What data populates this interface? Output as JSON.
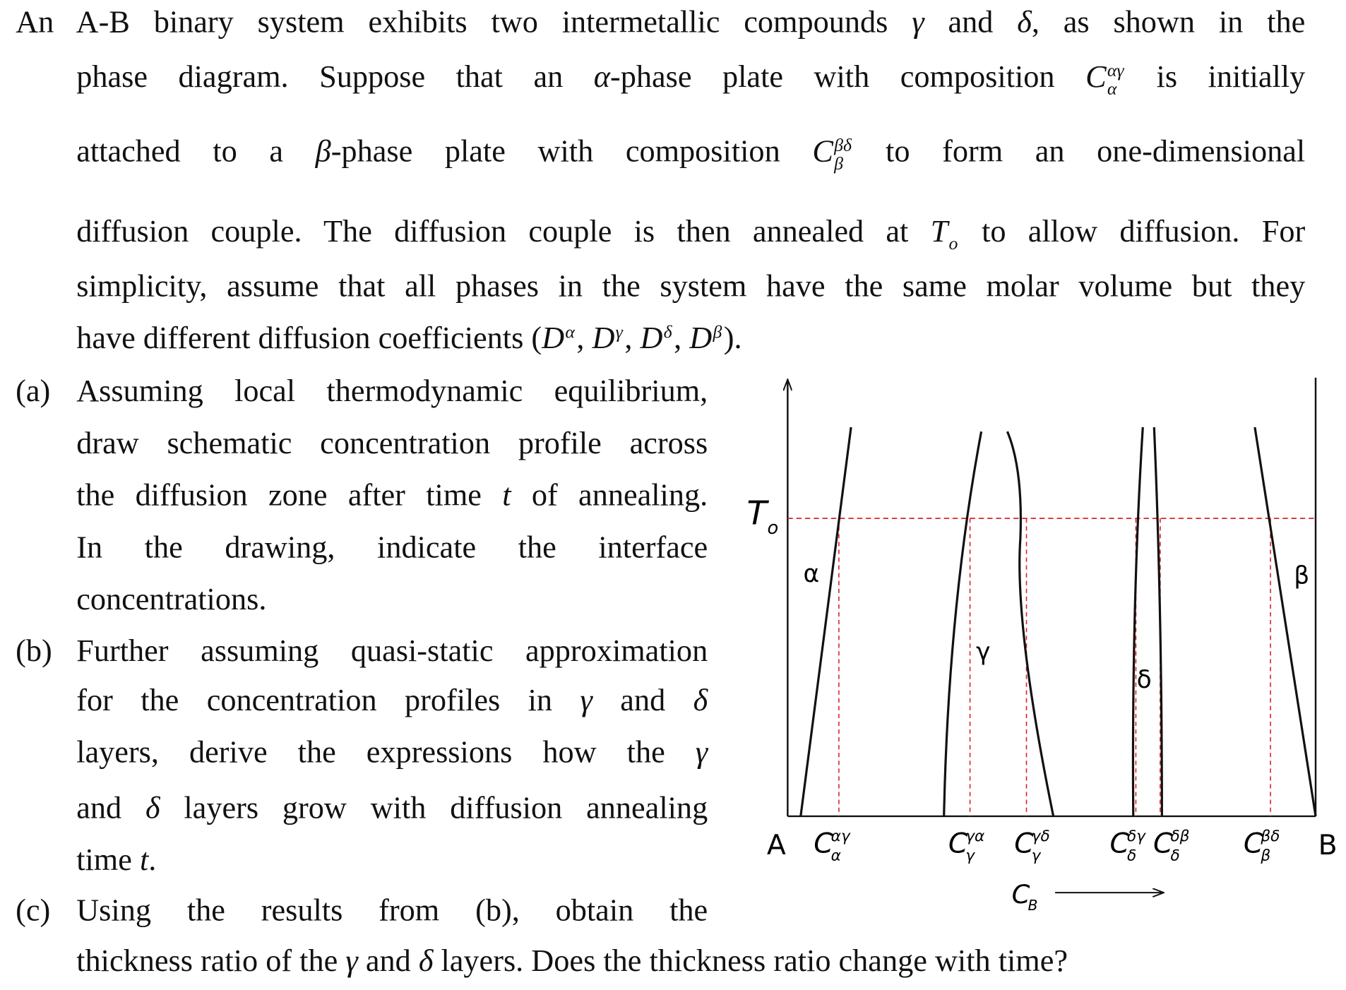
{
  "intro": {
    "lines": [
      [
        "An A-B binary system exhibits two intermetallic compounds ",
        {
          "math": "γ"
        },
        " and ",
        {
          "math": "δ"
        },
        ", as shown in the"
      ],
      [
        "phase diagram. Suppose that an ",
        {
          "math": "α"
        },
        "-phase plate with composition ",
        {
          "base": "C",
          "sup": "αγ",
          "sub": "α"
        },
        " is initially"
      ],
      [
        "attached to a ",
        {
          "math": "β"
        },
        "-phase plate with composition ",
        {
          "base": "C",
          "sup": "βδ",
          "sub": "β"
        },
        " to form an one-dimensional"
      ],
      [
        "diffusion couple. The diffusion couple is then annealed at ",
        {
          "base": "T",
          "sub": "o"
        },
        " to allow diffusion. For"
      ],
      [
        "simplicity, assume that all phases in the system have the same molar volume but they"
      ],
      [
        "have different diffusion coefficients (",
        {
          "base": "D",
          "sup": "α"
        },
        ", ",
        {
          "base": "D",
          "sup": "γ"
        },
        ", ",
        {
          "base": "D",
          "sup": "δ"
        },
        ", ",
        {
          "base": "D",
          "sup": "β"
        },
        ")."
      ]
    ]
  },
  "parts": [
    {
      "label": "(a)",
      "lines": [
        [
          "Assuming local thermodynamic equilibrium,"
        ],
        [
          "draw schematic concentration profile across"
        ],
        [
          "the diffusion zone after time ",
          {
            "math": "t"
          },
          " of annealing."
        ],
        [
          "In the drawing, indicate the interface"
        ],
        [
          "concentrations."
        ]
      ]
    },
    {
      "label": "(b)",
      "lines": [
        [
          "Further assuming quasi-static approximation"
        ],
        [
          "for the concentration profiles in ",
          {
            "math": "γ"
          },
          " and ",
          {
            "math": "δ"
          }
        ],
        [
          "layers, derive the expressions how the ",
          {
            "math": "γ"
          }
        ],
        [
          "and ",
          {
            "math": "δ"
          },
          " layers grow with diffusion annealing"
        ],
        [
          "time ",
          {
            "math": "t"
          },
          "."
        ]
      ]
    },
    {
      "label": "(c)",
      "lines": [
        [
          "Using the results from (b), obtain the"
        ],
        [
          "thickness ratio of the ",
          {
            "math": "γ"
          },
          " and ",
          {
            "math": "δ"
          },
          " layers. Does the thickness ratio change with time?"
        ]
      ]
    }
  ],
  "diagram": {
    "y_label": {
      "base": "T",
      "sub": "o"
    },
    "phase_labels": [
      "α",
      "γ",
      "δ",
      "β"
    ],
    "end_labels": [
      "A",
      "B"
    ],
    "x_labels": [
      {
        "base": "C",
        "sup": "αγ",
        "sub": "α"
      },
      {
        "base": "C",
        "sup": "γα",
        "sub": "γ"
      },
      {
        "base": "C",
        "sup": "γδ",
        "sub": "γ"
      },
      {
        "base": "C",
        "sup": "δγ",
        "sub": "δ"
      },
      {
        "base": "C",
        "sup": "δβ",
        "sub": "δ"
      },
      {
        "base": "C",
        "sup": "βδ",
        "sub": "β"
      }
    ],
    "x_axis_label": {
      "base": "C",
      "sub": "B"
    }
  }
}
